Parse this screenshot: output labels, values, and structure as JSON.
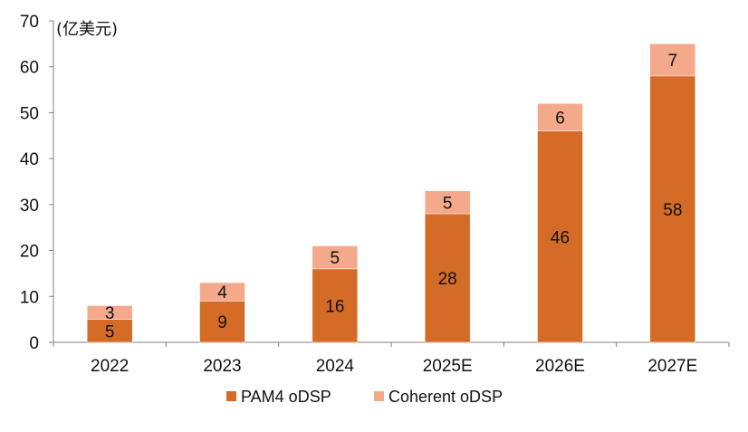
{
  "chart_data": {
    "type": "bar",
    "stacked": true,
    "unit_label": "(亿美元)",
    "categories": [
      "2022",
      "2023",
      "2024",
      "2025E",
      "2026E",
      "2027E"
    ],
    "series": [
      {
        "name": "PAM4 oDSP",
        "values": [
          5,
          9,
          16,
          28,
          46,
          58
        ],
        "color": "#D46B26"
      },
      {
        "name": "Coherent oDSP",
        "values": [
          3,
          4,
          5,
          5,
          6,
          7
        ],
        "color": "#F3A98A"
      }
    ],
    "y_ticks": [
      "0",
      "10",
      "20",
      "30",
      "40",
      "50",
      "60",
      "70"
    ],
    "ylim": [
      0,
      70
    ],
    "grid": false,
    "legend": "bottom-center"
  }
}
